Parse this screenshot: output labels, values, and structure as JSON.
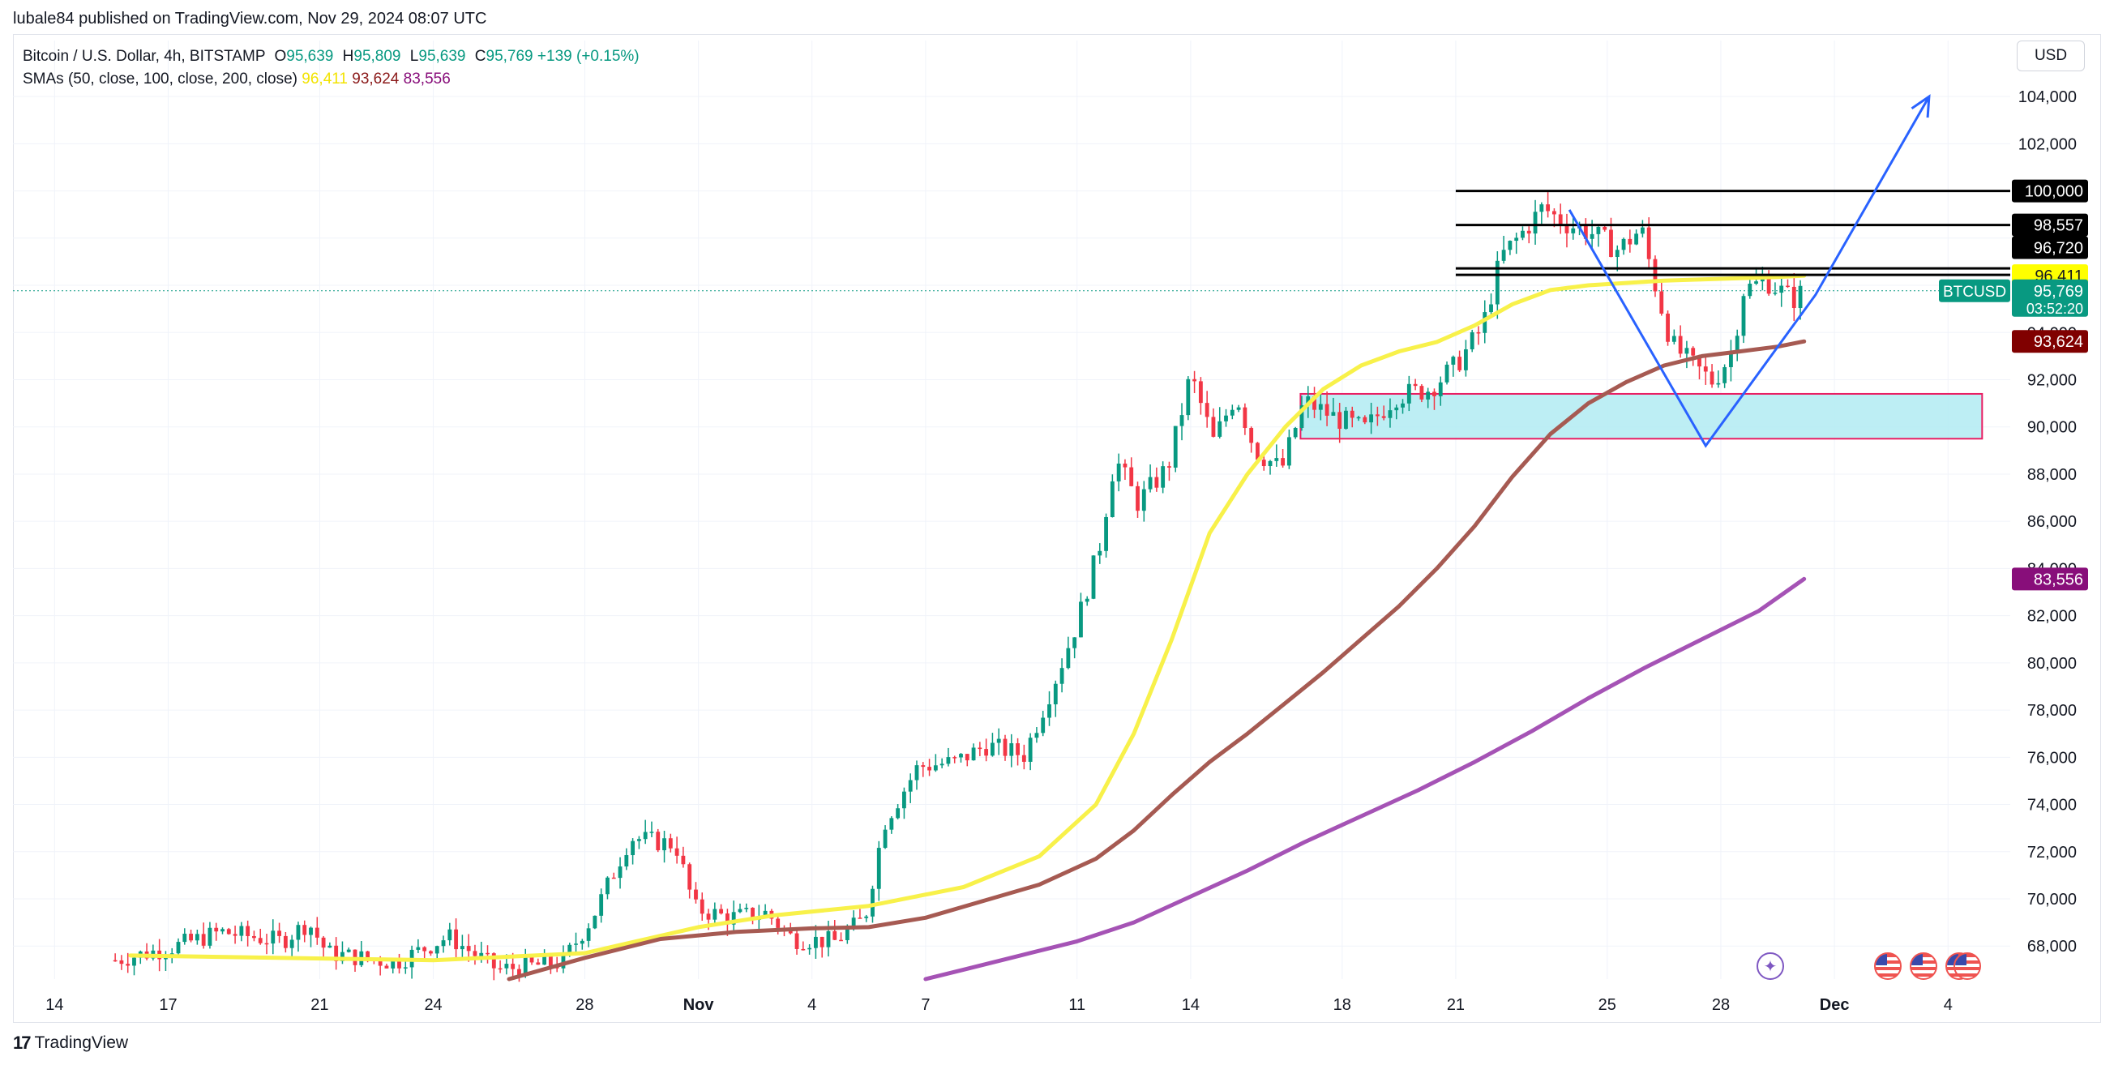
{
  "header": {
    "published_by": "lubale84 published on TradingView.com, Nov 29, 2024 08:07 UTC"
  },
  "legend": {
    "symbol": "Bitcoin / U.S. Dollar, 4h, BITSTAMP",
    "o_label": "O",
    "o_value": "95,639",
    "h_label": "H",
    "h_value": "95,809",
    "l_label": "L",
    "l_value": "95,639",
    "c_label": "C",
    "c_value": "95,769",
    "change": "+139 (+0.15%)",
    "sma_label": "SMAs (50, close, 100, close, 200, close)",
    "sma50": "96,411",
    "sma100": "93,624",
    "sma200": "83,556"
  },
  "currency_button": "USD",
  "footer": {
    "brand_mark": "17",
    "brand": "TradingView"
  },
  "colors": {
    "up": "#089981",
    "down": "#f23645",
    "sma50": "#f8f14a",
    "sma100": "#a65a52",
    "sma200": "#a553b5",
    "arrow": "#2962ff",
    "zone_fill": "#b2ebf2",
    "zone_border": "#e91e63"
  },
  "icons": {
    "events": "sparkle-icon",
    "economic": "us-flag-icon"
  },
  "chart_data": {
    "type": "candlestick",
    "symbol_tag": "BTCUSD",
    "timeframe": "4h",
    "ylim": [
      66600,
      105000
    ],
    "y_ticks": [
      68000,
      70000,
      72000,
      74000,
      76000,
      78000,
      80000,
      82000,
      84000,
      86000,
      88000,
      90000,
      92000,
      94000,
      96000,
      98000,
      100000,
      102000,
      104000
    ],
    "y_tick_labels": [
      "68,000",
      "70,000",
      "72,000",
      "74,000",
      "76,000",
      "78,000",
      "80,000",
      "82,000",
      "84,000",
      "86,000",
      "88,000",
      "90,000",
      "92,000",
      "94,000",
      "96,000",
      "98,000",
      "100,000",
      "102,000",
      "104,000"
    ],
    "x_ticks": [
      {
        "label": "14",
        "day": -17
      },
      {
        "label": "17",
        "day": -14
      },
      {
        "label": "21",
        "day": -10
      },
      {
        "label": "24",
        "day": -7
      },
      {
        "label": "28",
        "day": -3
      },
      {
        "label": "Nov",
        "day": 0
      },
      {
        "label": "4",
        "day": 3
      },
      {
        "label": "7",
        "day": 6
      },
      {
        "label": "11",
        "day": 10
      },
      {
        "label": "14",
        "day": 13
      },
      {
        "label": "18",
        "day": 17
      },
      {
        "label": "21",
        "day": 20
      },
      {
        "label": "25",
        "day": 24
      },
      {
        "label": "28",
        "day": 27
      },
      {
        "label": "Dec",
        "day": 30
      },
      {
        "label": "4",
        "day": 33
      }
    ],
    "x_range_days": [
      -18.1,
      34.3
    ],
    "price_anchors": [
      [
        -15.4,
        67400
      ],
      [
        -14.0,
        67900
      ],
      [
        -12.6,
        68600
      ],
      [
        -11.0,
        68200
      ],
      [
        -10.3,
        69000
      ],
      [
        -9.8,
        67700
      ],
      [
        -8.0,
        67300
      ],
      [
        -6.6,
        68400
      ],
      [
        -5.3,
        67000
      ],
      [
        -3.6,
        67300
      ],
      [
        -2.8,
        69200
      ],
      [
        -1.8,
        72600
      ],
      [
        -0.6,
        72300
      ],
      [
        -0.1,
        69600
      ],
      [
        0.8,
        69200
      ],
      [
        1.8,
        69400
      ],
      [
        2.5,
        68300
      ],
      [
        3.6,
        68200
      ],
      [
        4.4,
        69200
      ],
      [
        4.9,
        73200
      ],
      [
        5.8,
        75600
      ],
      [
        6.8,
        75800
      ],
      [
        7.6,
        76500
      ],
      [
        8.6,
        76100
      ],
      [
        9.5,
        79600
      ],
      [
        10.0,
        81700
      ],
      [
        10.6,
        85000
      ],
      [
        11.0,
        88700
      ],
      [
        11.6,
        86800
      ],
      [
        12.4,
        88300
      ],
      [
        13.0,
        92200
      ],
      [
        13.6,
        89400
      ],
      [
        14.2,
        91400
      ],
      [
        14.7,
        89000
      ],
      [
        15.4,
        88200
      ],
      [
        16.0,
        91100
      ],
      [
        16.8,
        90400
      ],
      [
        17.6,
        89900
      ],
      [
        18.4,
        91300
      ],
      [
        19.3,
        91600
      ],
      [
        20.0,
        92600
      ],
      [
        20.7,
        94200
      ],
      [
        21.2,
        97200
      ],
      [
        21.8,
        98300
      ],
      [
        22.3,
        99300
      ],
      [
        22.8,
        98700
      ],
      [
        23.6,
        98200
      ],
      [
        24.3,
        97500
      ],
      [
        24.9,
        98400
      ],
      [
        25.2,
        96400
      ],
      [
        25.7,
        93500
      ],
      [
        26.2,
        92700
      ],
      [
        26.8,
        91900
      ],
      [
        27.3,
        93200
      ],
      [
        27.6,
        95800
      ],
      [
        28.2,
        96200
      ],
      [
        28.9,
        95400
      ],
      [
        29.2,
        95769
      ]
    ],
    "series": [
      {
        "name": "SMA 50",
        "points": [
          [
            -15.0,
            67600
          ],
          [
            -7.0,
            67400
          ],
          [
            -3.0,
            67700
          ],
          [
            0.0,
            68800
          ],
          [
            2.0,
            69300
          ],
          [
            4.5,
            69700
          ],
          [
            7.0,
            70500
          ],
          [
            9.0,
            71800
          ],
          [
            10.5,
            74000
          ],
          [
            11.5,
            77000
          ],
          [
            12.5,
            81000
          ],
          [
            13.5,
            85500
          ],
          [
            14.5,
            88000
          ],
          [
            15.5,
            90000
          ],
          [
            16.5,
            91600
          ],
          [
            17.5,
            92600
          ],
          [
            18.5,
            93200
          ],
          [
            19.5,
            93600
          ],
          [
            20.5,
            94300
          ],
          [
            21.5,
            95200
          ],
          [
            22.5,
            95800
          ],
          [
            23.5,
            96000
          ],
          [
            24.5,
            96100
          ],
          [
            25.5,
            96200
          ],
          [
            26.5,
            96250
          ],
          [
            27.5,
            96300
          ],
          [
            28.5,
            96350
          ],
          [
            29.2,
            96411
          ]
        ]
      },
      {
        "name": "SMA 100",
        "points": [
          [
            -5.0,
            66600
          ],
          [
            -3.0,
            67500
          ],
          [
            -1.0,
            68300
          ],
          [
            1.0,
            68600
          ],
          [
            3.0,
            68750
          ],
          [
            4.5,
            68800
          ],
          [
            6.0,
            69200
          ],
          [
            7.5,
            69900
          ],
          [
            9.0,
            70600
          ],
          [
            10.5,
            71700
          ],
          [
            11.5,
            72900
          ],
          [
            12.5,
            74400
          ],
          [
            13.5,
            75800
          ],
          [
            14.5,
            77000
          ],
          [
            15.5,
            78300
          ],
          [
            16.5,
            79600
          ],
          [
            17.5,
            81000
          ],
          [
            18.5,
            82400
          ],
          [
            19.5,
            84000
          ],
          [
            20.5,
            85800
          ],
          [
            21.5,
            87900
          ],
          [
            22.5,
            89700
          ],
          [
            23.5,
            91000
          ],
          [
            24.5,
            91900
          ],
          [
            25.5,
            92600
          ],
          [
            26.5,
            93000
          ],
          [
            27.5,
            93200
          ],
          [
            28.5,
            93400
          ],
          [
            29.2,
            93624
          ]
        ]
      },
      {
        "name": "SMA 200",
        "points": [
          [
            6.0,
            66600
          ],
          [
            7.0,
            67000
          ],
          [
            8.5,
            67600
          ],
          [
            10.0,
            68200
          ],
          [
            11.5,
            69000
          ],
          [
            13.0,
            70100
          ],
          [
            14.5,
            71200
          ],
          [
            16.0,
            72400
          ],
          [
            17.5,
            73500
          ],
          [
            19.0,
            74600
          ],
          [
            20.5,
            75800
          ],
          [
            22.0,
            77100
          ],
          [
            23.5,
            78500
          ],
          [
            25.0,
            79800
          ],
          [
            26.5,
            81000
          ],
          [
            28.0,
            82200
          ],
          [
            29.2,
            83556
          ]
        ]
      }
    ],
    "horizontal_levels": [
      {
        "value": 100000,
        "label": "100,000",
        "from_day": 20.0,
        "to_day": 34.3
      },
      {
        "value": 98557,
        "label": "98,557",
        "from_day": 20.0,
        "to_day": 34.3
      },
      {
        "value": 96720,
        "label": "96,720",
        "from_day": 20.0,
        "to_day": 34.3
      }
    ],
    "zone": {
      "y_low": 89500,
      "y_high": 91400,
      "from_day": 15.9,
      "to_day": 33.9
    },
    "drawing_path": [
      [
        23.0,
        99200
      ],
      [
        26.6,
        89200
      ],
      [
        29.5,
        95600
      ],
      [
        32.5,
        104000
      ]
    ],
    "price_tags": [
      {
        "value": 100000,
        "label": "100,000",
        "color": "#000000",
        "text_color": "#ffffff"
      },
      {
        "value": 98557,
        "label": "98,557",
        "color": "#000000",
        "text_color": "#ffffff"
      },
      {
        "value": 97600,
        "label": "96,720",
        "color": "#000000",
        "text_color": "#ffffff"
      },
      {
        "value": 96411,
        "label": "96,411",
        "color": "#ffff00",
        "text_color": "#131722"
      },
      {
        "value": 95769,
        "label": "95,769",
        "color": "#089981",
        "text_color": "#ffffff",
        "sub": "03:52:20",
        "symbol": "BTCUSD"
      },
      {
        "value": 93624,
        "label": "93,624",
        "color": "#800000",
        "text_color": "#ffffff"
      },
      {
        "value": 83556,
        "label": "83,556",
        "color": "#880e7a",
        "text_color": "#ffffff"
      }
    ],
    "last_price": 95769
  }
}
